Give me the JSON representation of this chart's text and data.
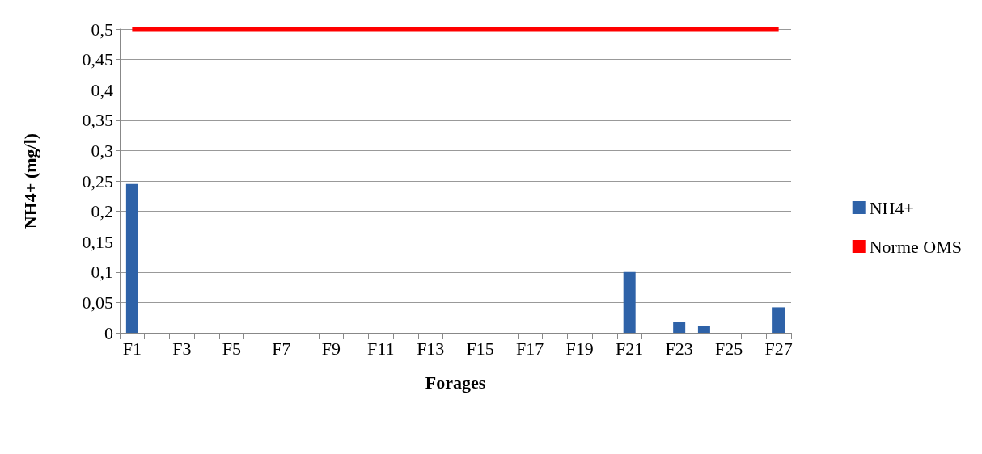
{
  "chart_data": {
    "type": "bar",
    "xlabel": "Forages",
    "ylabel": "NH4+ (mg/l)",
    "categories": [
      "F1",
      null,
      "F3",
      null,
      "F5",
      null,
      "F7",
      null,
      "F9",
      null,
      "F11",
      null,
      "F13",
      null,
      "F15",
      null,
      "F17",
      null,
      "F19",
      null,
      "F21",
      null,
      "F23",
      null,
      "F25",
      null,
      "F27"
    ],
    "series": [
      {
        "name": "NH4+",
        "color": "#2e62a8",
        "values": [
          0.245,
          0,
          0,
          0,
          0,
          0,
          0,
          0,
          0,
          0,
          0,
          0,
          0,
          0,
          0,
          0,
          0,
          0,
          0,
          0,
          0.1,
          0,
          0.018,
          0.012,
          0,
          0,
          0.042
        ]
      },
      {
        "name": "Norme OMS",
        "type": "line",
        "color": "#ff0000",
        "values": [
          0.5,
          0.5,
          0.5,
          0.5,
          0.5,
          0.5,
          0.5,
          0.5,
          0.5,
          0.5,
          0.5,
          0.5,
          0.5,
          0.5,
          0.5,
          0.5,
          0.5,
          0.5,
          0.5,
          0.5,
          0.5,
          0.5,
          0.5,
          0.5,
          0.5,
          0.5,
          0.5
        ]
      }
    ],
    "ylim": [
      0,
      0.5
    ],
    "yticks": [
      0,
      {
        "value": 0.05,
        "label": "0,05"
      },
      {
        "value": 0.1,
        "label": "0,1"
      },
      {
        "value": 0.15,
        "label": "0,15"
      },
      {
        "value": 0.2,
        "label": "0,2"
      },
      {
        "value": 0.25,
        "label": "0,25"
      },
      {
        "value": 0.3,
        "label": "0,3"
      },
      {
        "value": 0.35,
        "label": "0,35"
      },
      {
        "value": 0.4,
        "label": "0,4"
      },
      {
        "value": 0.45,
        "label": "0,45"
      },
      {
        "value": 0.5,
        "label": "0,5"
      }
    ],
    "grid": "y",
    "legend": "right",
    "marker": "none"
  }
}
